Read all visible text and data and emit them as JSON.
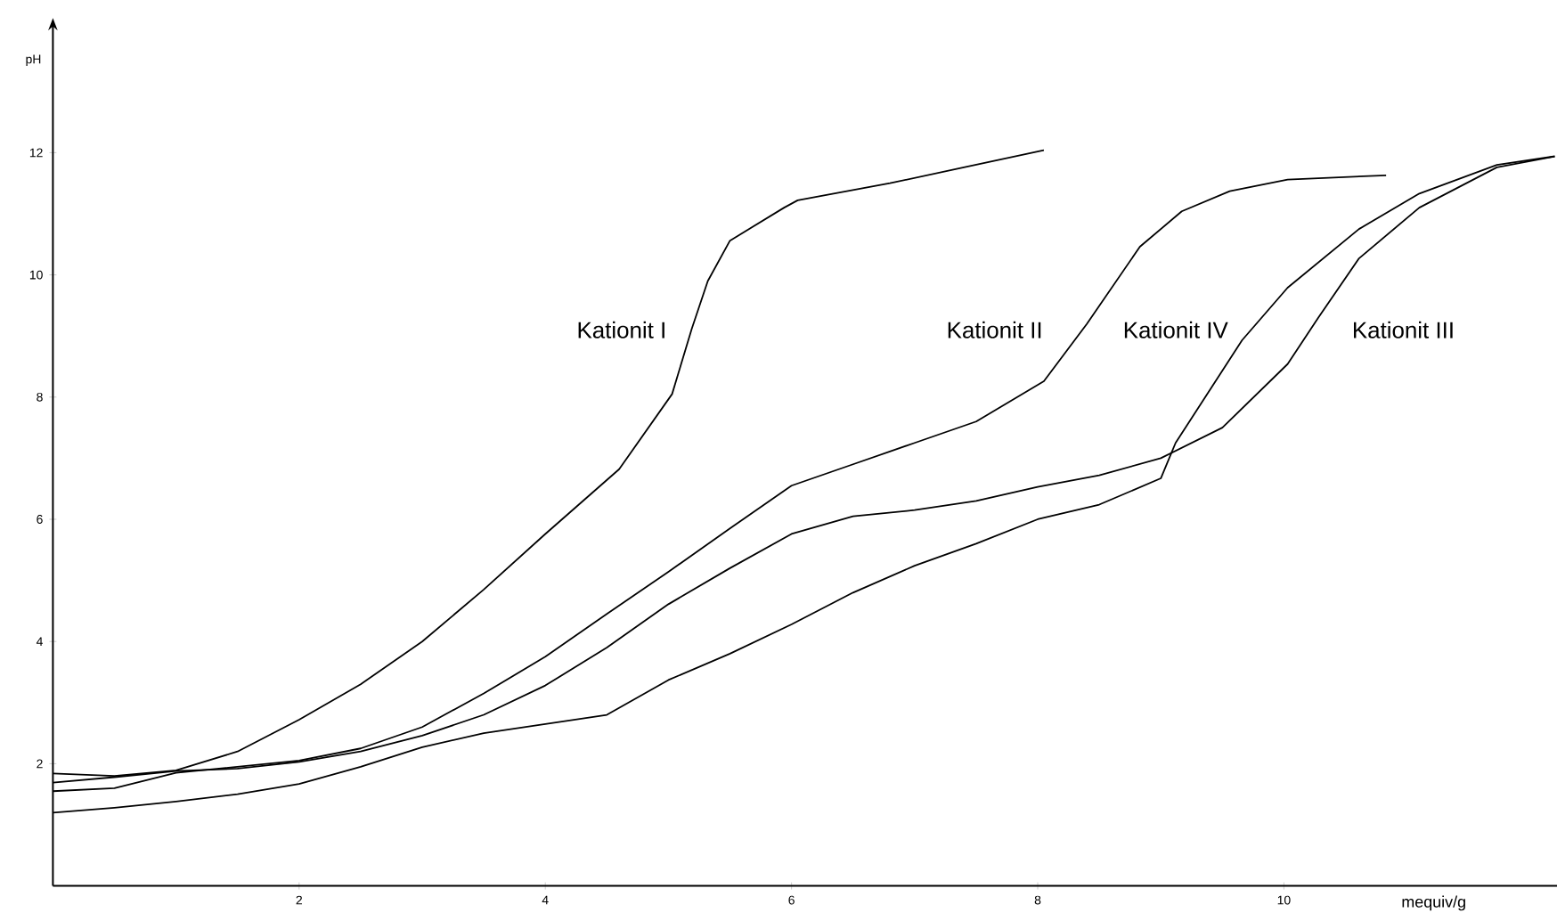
{
  "chart_data": {
    "type": "line",
    "xlabel": "mequiv/g",
    "ylabel": "pH",
    "xlim": [
      0,
      12.3
    ],
    "ylim": [
      0,
      14
    ],
    "xticks": [
      2,
      4,
      6,
      8,
      10
    ],
    "yticks": [
      2,
      4,
      6,
      8,
      10,
      12
    ],
    "grid": false,
    "legend": false,
    "marker": "none",
    "line_style": "solid",
    "series": [
      {
        "name": "Kationit I",
        "color": "#000000",
        "x": [
          0,
          0.5,
          1,
          1.5,
          2,
          2.5,
          3,
          3.5,
          4,
          4.6,
          5.03,
          5.19,
          5.32,
          5.5,
          5.94,
          6.05,
          6.8,
          7.4,
          8.05
        ],
        "values": [
          1.84,
          1.8,
          1.89,
          2.2,
          2.72,
          3.3,
          4.0,
          4.85,
          5.76,
          6.82,
          8.05,
          9.12,
          9.9,
          10.56,
          11.1,
          11.22,
          11.5,
          11.76,
          12.04
        ]
      },
      {
        "name": "Kationit II",
        "color": "#000000",
        "x": [
          0,
          0.5,
          1,
          1.5,
          2,
          2.5,
          3,
          3.5,
          4,
          4.5,
          5,
          5.5,
          6,
          6.5,
          7,
          7.5,
          8.05,
          8.4,
          8.83,
          9.17,
          9.56,
          10.03,
          10.83
        ],
        "values": [
          1.55,
          1.6,
          1.85,
          1.95,
          2.05,
          2.25,
          2.6,
          3.15,
          3.75,
          4.45,
          5.14,
          5.85,
          6.55,
          6.9,
          7.25,
          7.6,
          8.26,
          9.2,
          10.46,
          11.04,
          11.37,
          11.56,
          11.63
        ]
      },
      {
        "name": "Kationit III",
        "color": "#000000",
        "x": [
          0,
          0.5,
          1,
          1.5,
          2,
          2.5,
          3,
          3.5,
          4,
          4.5,
          5,
          5.5,
          6,
          6.5,
          7,
          7.5,
          8,
          8.5,
          9,
          9.5,
          10.03,
          10.28,
          10.61,
          11.1,
          11.73,
          12.2
        ],
        "values": [
          1.69,
          1.78,
          1.88,
          1.92,
          2.03,
          2.2,
          2.46,
          2.8,
          3.28,
          3.9,
          4.61,
          5.2,
          5.76,
          6.05,
          6.15,
          6.3,
          6.53,
          6.72,
          7.0,
          7.5,
          8.54,
          9.3,
          10.27,
          11.1,
          11.76,
          11.94
        ]
      },
      {
        "name": "Kationit IV",
        "color": "#000000",
        "x": [
          0,
          0.5,
          1,
          1.5,
          2,
          2.5,
          3,
          3.5,
          4,
          4.5,
          5,
          5.5,
          6,
          6.5,
          7,
          7.5,
          8,
          8.5,
          9,
          9.12,
          9.66,
          10.03,
          10.61,
          11.1,
          11.73,
          12.2
        ],
        "values": [
          1.2,
          1.28,
          1.38,
          1.5,
          1.67,
          1.95,
          2.27,
          2.5,
          2.65,
          2.8,
          3.37,
          3.8,
          4.28,
          4.8,
          5.24,
          5.6,
          6.0,
          6.24,
          6.67,
          7.25,
          8.93,
          9.79,
          10.75,
          11.33,
          11.8,
          11.94
        ]
      }
    ]
  }
}
